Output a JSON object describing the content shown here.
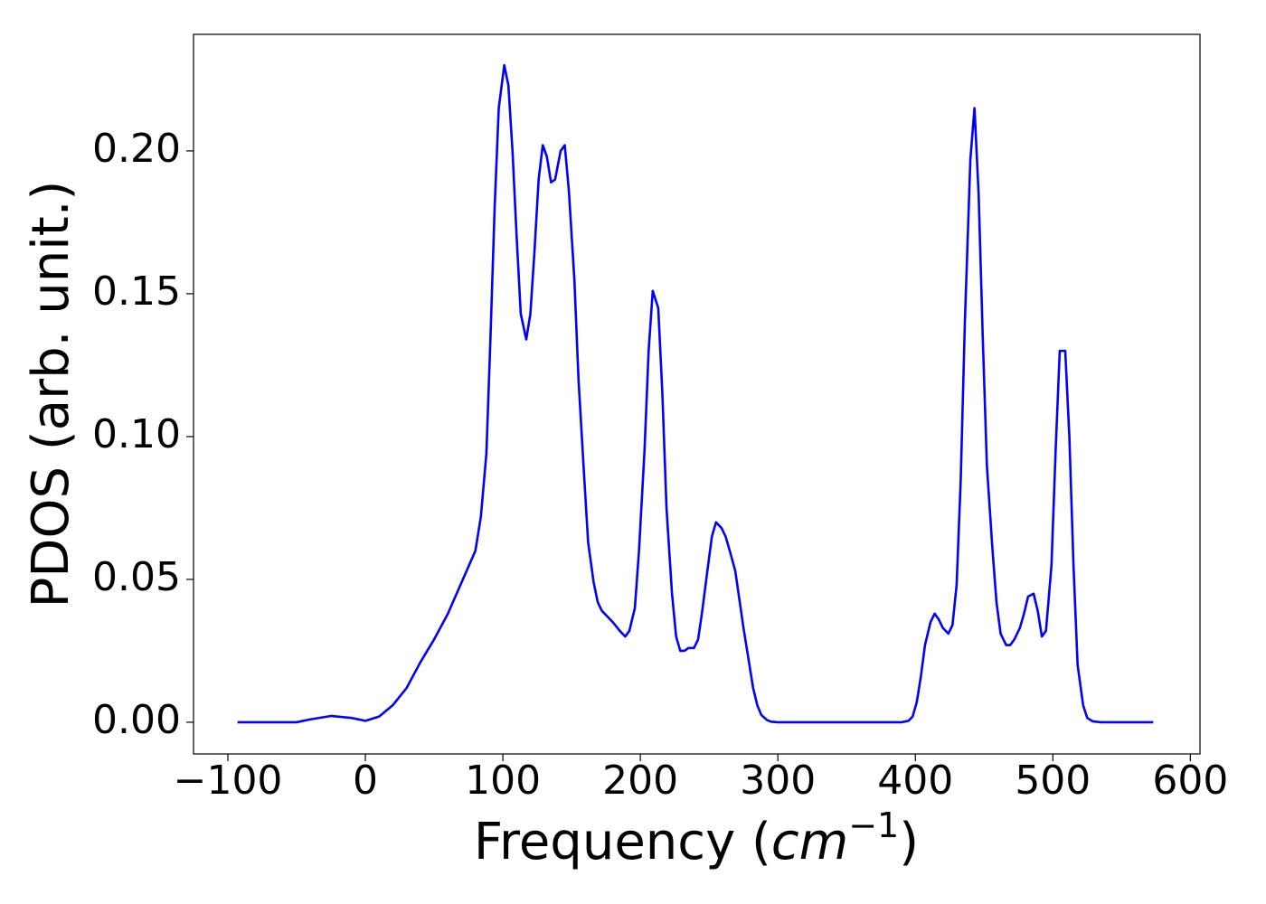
{
  "chart_data": {
    "type": "line",
    "xlabel": [
      "Frequency (",
      "cm",
      "−1",
      ")"
    ],
    "ylabel": "PDOS (arb. unit.)",
    "x": [
      -93,
      -50,
      -40,
      -25,
      -10,
      0,
      10,
      20,
      30,
      40,
      50,
      60,
      70,
      80,
      84,
      88,
      91,
      94,
      97,
      101,
      104,
      107,
      110,
      113,
      117,
      120,
      123,
      126,
      129,
      132,
      135,
      138,
      142,
      145,
      148,
      152,
      155,
      159,
      162,
      166,
      169,
      172,
      176,
      180,
      185,
      189,
      192,
      196,
      199,
      203,
      206,
      209,
      213,
      216,
      219,
      223,
      226,
      229,
      232,
      235,
      239,
      242,
      245,
      249,
      252,
      255,
      259,
      262,
      265,
      269,
      272,
      275,
      279,
      282,
      285,
      288,
      292,
      295,
      300,
      390,
      395,
      398,
      401,
      404,
      407,
      411,
      414,
      417,
      420,
      424,
      427,
      430,
      433,
      436,
      440,
      443,
      446,
      449,
      452,
      456,
      459,
      462,
      466,
      469,
      472,
      476,
      479,
      482,
      486,
      489,
      492,
      495,
      499,
      502,
      505,
      509,
      512,
      515,
      518,
      522,
      525,
      529,
      535,
      573
    ],
    "series": [
      {
        "name": "PDOS",
        "color": "#0000ff",
        "values": [
          0,
          0,
          0.001,
          0.0022,
          0.0015,
          0.0005,
          0.002,
          0.006,
          0.012,
          0.021,
          0.029,
          0.038,
          0.049,
          0.06,
          0.072,
          0.094,
          0.135,
          0.18,
          0.215,
          0.23,
          0.223,
          0.2,
          0.17,
          0.143,
          0.134,
          0.143,
          0.165,
          0.19,
          0.202,
          0.198,
          0.189,
          0.19,
          0.2,
          0.202,
          0.186,
          0.155,
          0.12,
          0.087,
          0.063,
          0.049,
          0.042,
          0.039,
          0.037,
          0.035,
          0.032,
          0.03,
          0.032,
          0.04,
          0.06,
          0.095,
          0.13,
          0.151,
          0.145,
          0.115,
          0.075,
          0.045,
          0.03,
          0.025,
          0.025,
          0.026,
          0.026,
          0.029,
          0.039,
          0.054,
          0.065,
          0.07,
          0.068,
          0.065,
          0.06,
          0.053,
          0.043,
          0.033,
          0.021,
          0.012,
          0.006,
          0.0025,
          0.0008,
          0.0002,
          0,
          0,
          0.0005,
          0.002,
          0.007,
          0.016,
          0.027,
          0.035,
          0.038,
          0.036,
          0.033,
          0.031,
          0.034,
          0.048,
          0.085,
          0.14,
          0.197,
          0.215,
          0.185,
          0.135,
          0.09,
          0.061,
          0.042,
          0.031,
          0.027,
          0.027,
          0.029,
          0.033,
          0.038,
          0.044,
          0.045,
          0.039,
          0.03,
          0.032,
          0.055,
          0.095,
          0.13,
          0.13,
          0.1,
          0.055,
          0.02,
          0.006,
          0.0015,
          0.0003,
          0,
          0
        ]
      }
    ],
    "xlim": [
      -125,
      607
    ],
    "ylim": [
      -0.0111,
      0.2408
    ],
    "xticks": [
      {
        "value": -100,
        "label": "−100"
      },
      0,
      100,
      200,
      300,
      400,
      500,
      600
    ],
    "yticks": [
      {
        "value": 0,
        "label": "0.00"
      },
      {
        "value": 0.05,
        "label": "0.05"
      },
      {
        "value": 0.1,
        "label": "0.10"
      },
      {
        "value": 0.15,
        "label": "0.15"
      },
      {
        "value": 0.2,
        "label": "0.20"
      }
    ],
    "grid": false
  }
}
